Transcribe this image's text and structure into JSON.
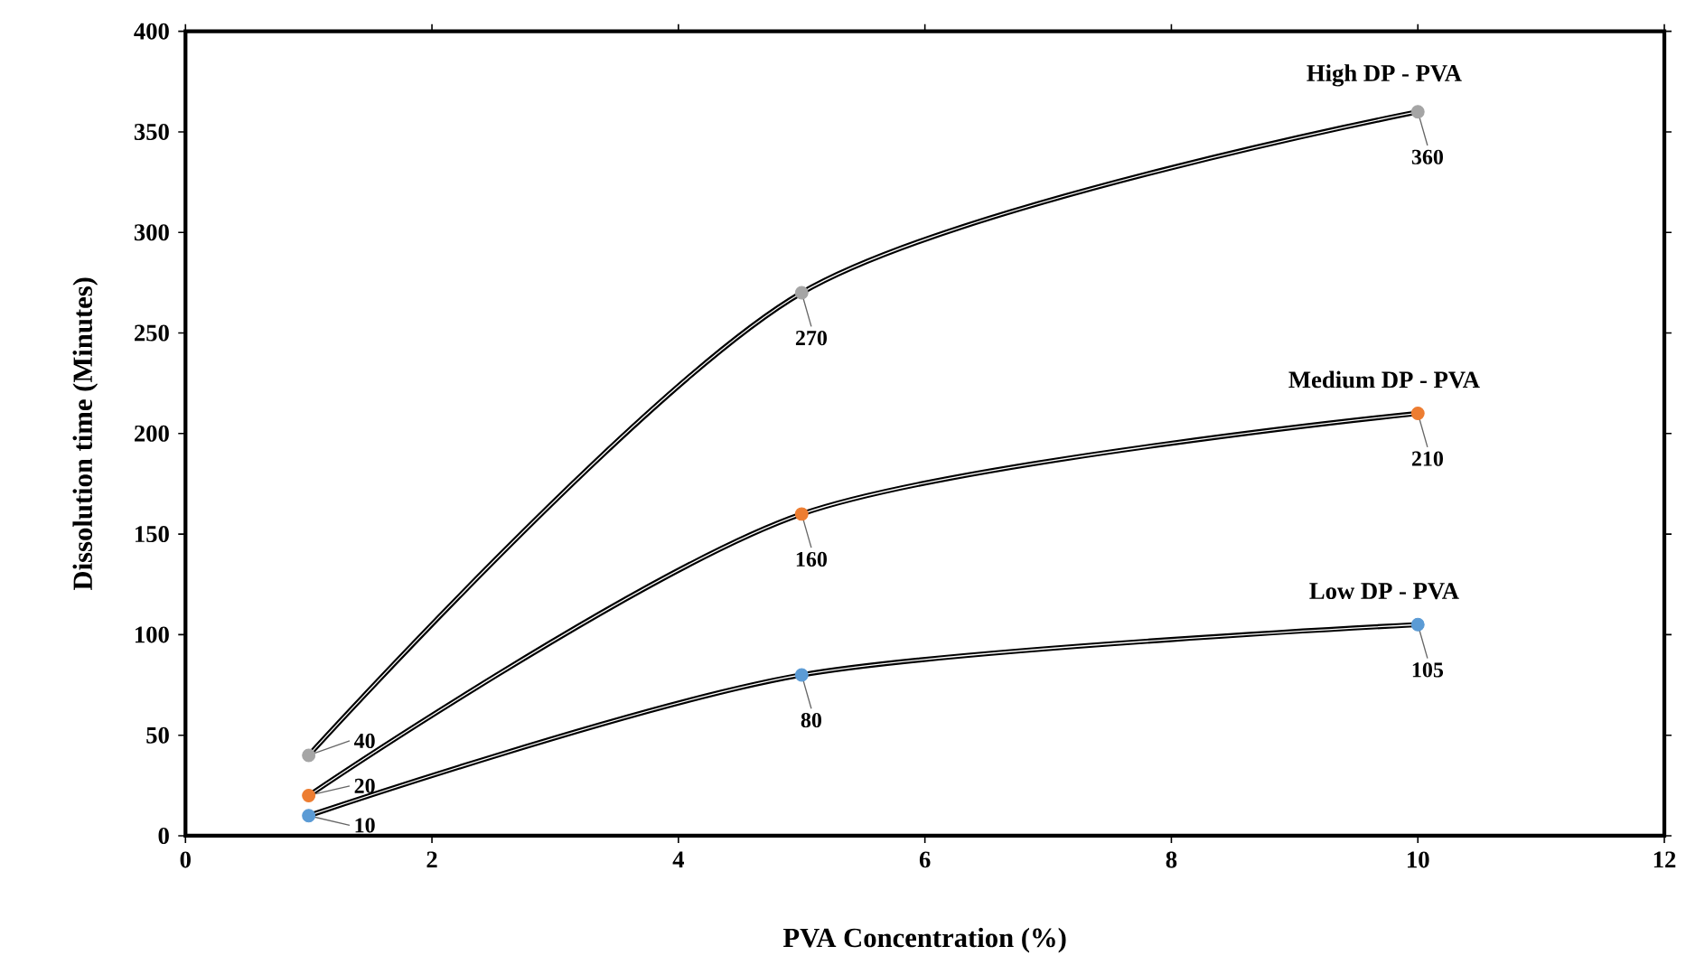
{
  "chart_data": {
    "type": "line",
    "xlabel": "PVA Concentration (%)",
    "ylabel": "Dissolution time (Minutes)",
    "xlim": [
      0,
      12
    ],
    "xticks": [
      0,
      2,
      4,
      6,
      8,
      10,
      12
    ],
    "ylim": [
      0,
      400
    ],
    "yticks": [
      0,
      50,
      100,
      150,
      200,
      250,
      300,
      350,
      400
    ],
    "grid": false,
    "legend": false,
    "marker": "circle",
    "line_style": "solid",
    "data_labels": true,
    "series": [
      {
        "name": "High DP - PVA",
        "color": "#a5a5a5",
        "x": [
          1,
          5,
          10
        ],
        "values": [
          40,
          270,
          360
        ]
      },
      {
        "name": "Medium DP - PVA",
        "color": "#ed7d31",
        "x": [
          1,
          5,
          10
        ],
        "values": [
          20,
          160,
          210
        ]
      },
      {
        "name": "Low DP - PVA",
        "color": "#5b9bd5",
        "x": [
          1,
          5,
          10
        ],
        "values": [
          10,
          80,
          105
        ]
      }
    ]
  }
}
